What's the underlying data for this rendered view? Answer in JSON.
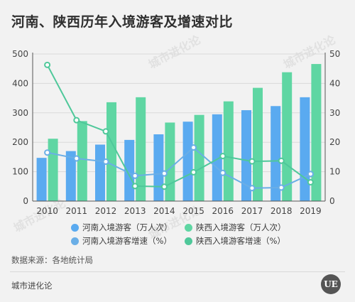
{
  "title": "河南、陕西历年入境游客及增速对比",
  "source": "数据来源：各地统计局",
  "brand": "城市进化论",
  "logo": "UE",
  "watermark": "城市进化论",
  "watermark_sub": "URBAN EVOLUTION",
  "colors": {
    "henan_bar": "#5aaaf0",
    "shaanxi_bar": "#5fd6a3",
    "henan_line": "#6aaee6",
    "shaanxi_line": "#4fc89a"
  },
  "chart_data": {
    "type": "bar",
    "categories": [
      "2010",
      "2011",
      "2012",
      "2013",
      "2014",
      "2015",
      "2016",
      "2017",
      "2018",
      "2019"
    ],
    "ylim_left": [
      0,
      500
    ],
    "ylim_right": [
      0,
      50
    ],
    "yticks_left": [
      "0",
      "100",
      "200",
      "300",
      "400",
      "500"
    ],
    "yticks_right": [
      "0",
      "10",
      "20",
      "30",
      "40",
      "50"
    ],
    "series": [
      {
        "name": "河南入境游客（万人次）",
        "type": "bar",
        "axis": "left",
        "values": [
          147,
          170,
          192,
          208,
          227,
          270,
          295,
          309,
          323,
          353
        ]
      },
      {
        "name": "陕西入境游客（万人次）",
        "type": "bar",
        "axis": "left",
        "values": [
          212,
          272,
          336,
          353,
          267,
          293,
          339,
          385,
          438,
          466
        ]
      },
      {
        "name": "河南入境游客增速（%）",
        "type": "line",
        "axis": "right",
        "values": [
          16.5,
          14.5,
          13.4,
          8.6,
          9.4,
          18.2,
          9.6,
          4.4,
          4.6,
          9.2
        ]
      },
      {
        "name": "陕西入境游客增速（%）",
        "type": "line",
        "axis": "right",
        "values": [
          46.3,
          27.5,
          23.7,
          5.1,
          4.9,
          9.8,
          15.3,
          13.5,
          13.7,
          6.4
        ]
      }
    ]
  }
}
